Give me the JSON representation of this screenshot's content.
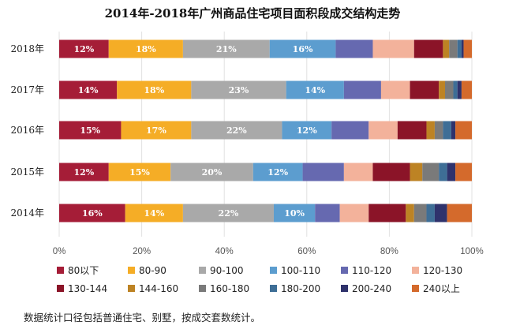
{
  "chart_data": {
    "type": "bar",
    "stacked": true,
    "orientation": "horizontal",
    "percent_stacked": true,
    "title": "2014年-2018年广州商品住宅项目面积段成交结构走势",
    "categories": [
      "2018年",
      "2017年",
      "2016年",
      "2015年",
      "2014年"
    ],
    "xlim": [
      0,
      100
    ],
    "xticks": [
      "0%",
      "20%",
      "40%",
      "60%",
      "80%",
      "100%"
    ],
    "grid": true,
    "legend_position": "bottom",
    "series": [
      {
        "name": "80以下",
        "color": "#a51d37",
        "values": [
          12,
          14,
          15,
          12,
          16
        ]
      },
      {
        "name": "80-90",
        "color": "#f5ad26",
        "values": [
          18,
          18,
          17,
          15,
          14
        ]
      },
      {
        "name": "90-100",
        "color": "#a9a9a9",
        "values": [
          21,
          23,
          22,
          20,
          22
        ]
      },
      {
        "name": "100-110",
        "color": "#5c9dcf",
        "values": [
          16,
          14,
          12,
          12,
          10
        ]
      },
      {
        "name": "110-120",
        "color": "#6669b0",
        "values": [
          9,
          9,
          9,
          10,
          6
        ]
      },
      {
        "name": "120-130",
        "color": "#f3b29b",
        "values": [
          10,
          7,
          7,
          7,
          7
        ]
      },
      {
        "name": "130-144",
        "color": "#8b1428",
        "values": [
          7,
          7,
          7,
          9,
          9
        ]
      },
      {
        "name": "144-160",
        "color": "#bd8324",
        "values": [
          1.5,
          1.5,
          2,
          3,
          2
        ]
      },
      {
        "name": "160-180",
        "color": "#7a7a7a",
        "values": [
          2,
          2,
          2,
          4,
          3
        ]
      },
      {
        "name": "180-200",
        "color": "#3e6e96",
        "values": [
          1,
          1,
          2,
          2,
          2
        ]
      },
      {
        "name": "200-240",
        "color": "#2f326c",
        "values": [
          0.5,
          1,
          1,
          2,
          3
        ]
      },
      {
        "name": "240以上",
        "color": "#d46a2c",
        "values": [
          2,
          2.5,
          4,
          4,
          6
        ]
      }
    ],
    "data_labels": {
      "80以下": [
        "12%",
        "14%",
        "15%",
        "12%",
        "16%"
      ],
      "80-90": [
        "18%",
        "18%",
        "17%",
        "15%",
        "14%"
      ],
      "90-100": [
        "21%",
        "23%",
        "22%",
        "20%",
        "22%"
      ],
      "100-110": [
        "16%",
        "14%",
        "12%",
        "12%",
        "10%"
      ]
    }
  },
  "footnote": "数据统计口径包括普通住宅、别墅，按成交套数统计。"
}
